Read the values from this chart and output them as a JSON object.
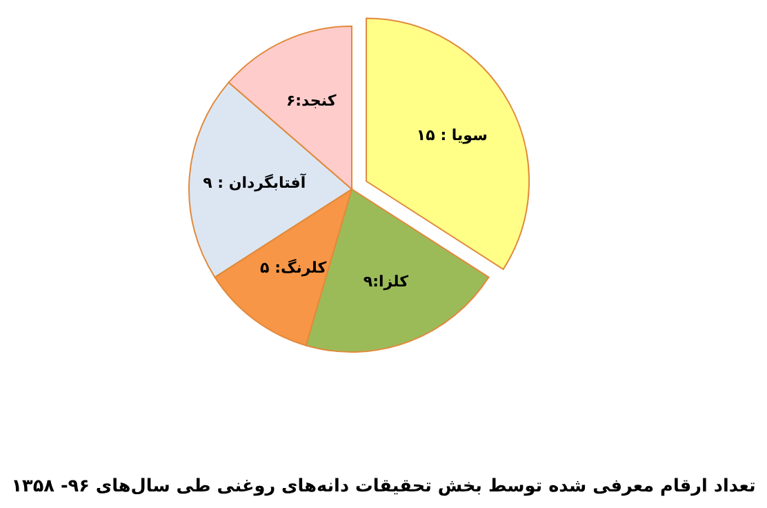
{
  "chart_data": {
    "type": "pie",
    "title": "تعداد ارقام معرفی شده توسط بخش تحقیقات دانه‌های روغنی طی سال‌های ۹۶- ۱۳۵۸",
    "categories": [
      "سویا : ۱۵",
      "کلزا:۹",
      "کلرنگ: ۵",
      "آفتابگردان : ۹",
      "کنجد:۶"
    ],
    "values": [
      15,
      9,
      5,
      9,
      6
    ],
    "colors": [
      "#ffff88",
      "#9bbb59",
      "#f79646",
      "#dce6f2",
      "#ffcccc"
    ]
  }
}
